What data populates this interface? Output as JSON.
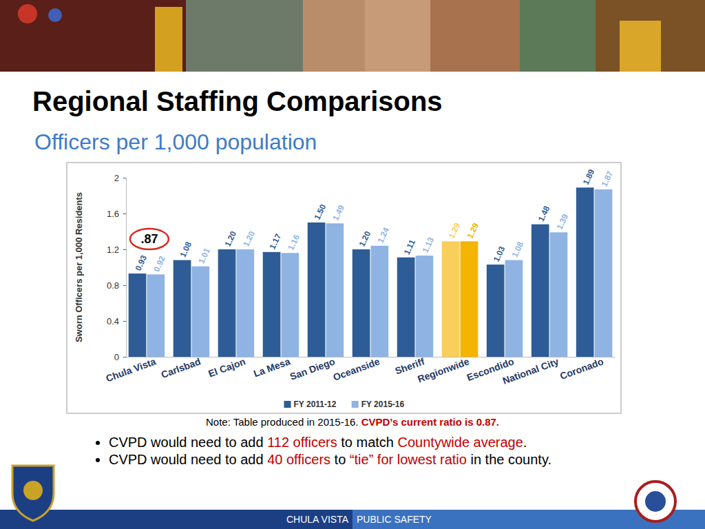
{
  "chart_data": {
    "type": "bar",
    "title": "Regional Staffing Comparisons",
    "subtitle": "Officers per 1,000 population",
    "y_label": "Sworn Officers per 1,000 Residents",
    "categories": [
      "Chula Vista",
      "Carlsbad",
      "El Cajon",
      "La Mesa",
      "San Diego",
      "Oceanside",
      "Sheriff",
      "Regionwide",
      "Escondido",
      "National City",
      "Coronado"
    ],
    "series": [
      {
        "name": "FY 2011-12",
        "color": "#2e5c96",
        "colors": [
          "#2e5c96",
          "#2e5c96",
          "#2e5c96",
          "#2e5c96",
          "#2e5c96",
          "#2e5c96",
          "#2e5c96",
          "#f9cf5c",
          "#2e5c96",
          "#2e5c96",
          "#2e5c96"
        ],
        "values": [
          0.93,
          1.08,
          1.2,
          1.17,
          1.5,
          1.2,
          1.11,
          1.29,
          1.03,
          1.48,
          1.89
        ],
        "value_labels": [
          "0.93",
          "1.08",
          "1.20",
          "1.17",
          "1.50",
          "1.20",
          "1.11",
          "1.29",
          "1.03",
          "1.48",
          "1.89"
        ]
      },
      {
        "name": "FY 2015-16",
        "color": "#8fb4e3",
        "colors": [
          "#8fb4e3",
          "#8fb4e3",
          "#8fb4e3",
          "#8fb4e3",
          "#8fb4e3",
          "#8fb4e3",
          "#8fb4e3",
          "#f5b400",
          "#8fb4e3",
          "#8fb4e3",
          "#8fb4e3"
        ],
        "values": [
          0.92,
          1.01,
          1.2,
          1.16,
          1.49,
          1.24,
          1.13,
          1.29,
          1.08,
          1.39,
          1.87
        ],
        "value_labels": [
          "0.92",
          "1.01",
          "1.20",
          "1.16",
          "1.49",
          "1.24",
          "1.13",
          "1.29",
          "1.08",
          "1.39",
          "1.87"
        ]
      }
    ],
    "ylim": [
      0,
      2
    ],
    "yticks": [
      0,
      0.4,
      0.8,
      1.2,
      1.6,
      2
    ],
    "grid": false,
    "legend": "bottom",
    "data_labels": true,
    "annotations": [
      ".87"
    ]
  },
  "slide": {
    "note": [
      "Note:  Table produced in 2015-16. ",
      "CVPD’s current ratio is 0.87."
    ],
    "bullets": [
      [
        "CVPD would need to add ",
        "112 officers",
        " to match ",
        "Countywide average",
        "."
      ],
      [
        "CVPD would need to add ",
        "40 officers",
        " to ",
        "“tie” for lowest ratio",
        " in the county."
      ]
    ],
    "footer": [
      "CHULA VISTA",
      "PUBLIC SAFETY"
    ]
  }
}
